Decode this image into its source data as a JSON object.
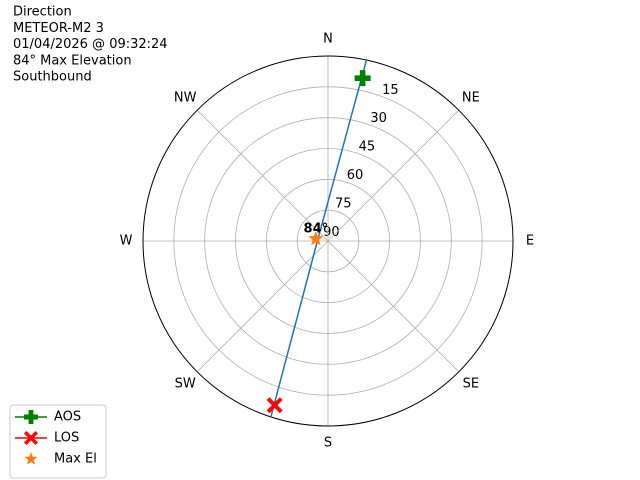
{
  "chart_data": {
    "type": "polar",
    "title_lines": [
      "Direction",
      "METEOR-M2 3",
      "01/04/2026 @ 09:32:24",
      "84° Max Elevation",
      "Southbound"
    ],
    "xticks": [
      {
        "value": 0,
        "label": "N"
      },
      {
        "value": 45,
        "label": "NE"
      },
      {
        "value": 90,
        "label": "E"
      },
      {
        "value": 135,
        "label": "SE"
      },
      {
        "value": 180,
        "label": "S"
      },
      {
        "value": 225,
        "label": "SW"
      },
      {
        "value": 270,
        "label": "W"
      },
      {
        "value": 315,
        "label": "NW"
      }
    ],
    "ylim": [
      90,
      0
    ],
    "yticks": [
      15,
      30,
      45,
      60,
      75,
      90
    ],
    "grid": true,
    "track": {
      "color": "#1f77b4",
      "x": [
        12,
        280,
        198
      ],
      "values": [
        0,
        85,
        0
      ]
    },
    "series": [
      {
        "name": "AOS",
        "color": "#008000",
        "marker": "plus",
        "linestyle": "solid",
        "x": [
          12
        ],
        "values": [
          9
        ]
      },
      {
        "name": "LOS",
        "color": "#ff0000",
        "marker": "x",
        "linestyle": "solid",
        "x": [
          198
        ],
        "values": [
          6
        ]
      },
      {
        "name": "Max El",
        "color": "#ff7f0e",
        "marker": "star",
        "linestyle": "none",
        "x": [
          280
        ],
        "values": [
          84
        ]
      }
    ],
    "annotation": "84°",
    "legend": "lower left"
  }
}
